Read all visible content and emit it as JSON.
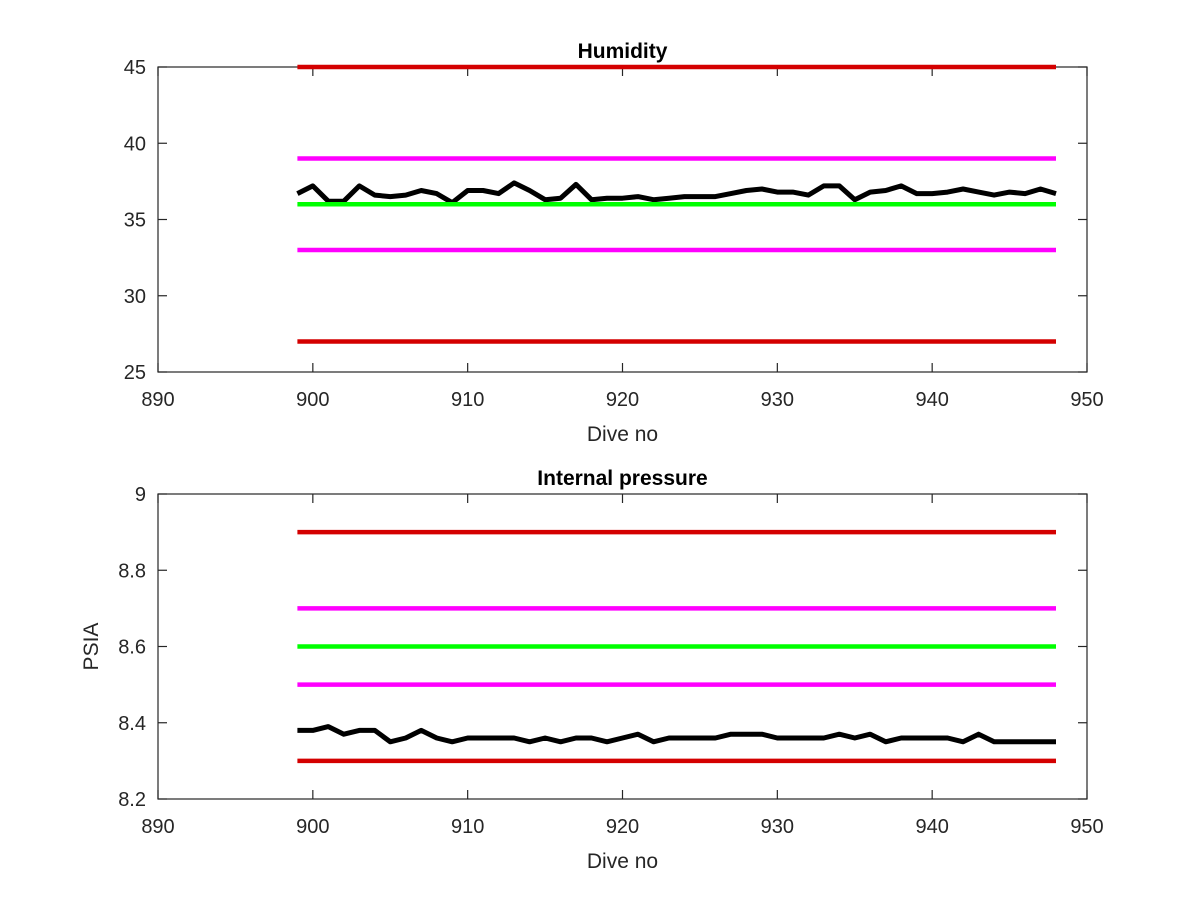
{
  "chart_data": [
    {
      "type": "line",
      "title": "Humidity",
      "xlabel": "Dive no",
      "ylabel": "",
      "xlim": [
        890,
        950
      ],
      "ylim": [
        25,
        45
      ],
      "xticks": [
        "890",
        "900",
        "910",
        "920",
        "930",
        "940",
        "950"
      ],
      "yticks": [
        "25",
        "30",
        "35",
        "40",
        "45"
      ],
      "grid": false,
      "legend": "none",
      "x": [
        899,
        900,
        901,
        902,
        903,
        904,
        905,
        906,
        907,
        908,
        909,
        910,
        911,
        912,
        913,
        914,
        915,
        916,
        917,
        918,
        919,
        920,
        921,
        922,
        923,
        924,
        925,
        926,
        927,
        928,
        929,
        930,
        931,
        932,
        933,
        934,
        935,
        936,
        937,
        938,
        939,
        940,
        941,
        942,
        943,
        944,
        945,
        946,
        947,
        948
      ],
      "series": [
        {
          "color": "#000000",
          "values": [
            36.7,
            37.2,
            36.2,
            36.2,
            37.2,
            36.6,
            36.5,
            36.6,
            36.9,
            36.7,
            36.1,
            36.9,
            36.9,
            36.7,
            37.4,
            36.9,
            36.3,
            36.4,
            37.3,
            36.3,
            36.4,
            36.4,
            36.5,
            36.3,
            36.4,
            36.5,
            36.5,
            36.5,
            36.7,
            36.9,
            37.0,
            36.8,
            36.8,
            36.6,
            37.2,
            37.2,
            36.3,
            36.8,
            36.9,
            37.2,
            36.7,
            36.7,
            36.8,
            37.0,
            36.8,
            36.6,
            36.8,
            36.7,
            37.0,
            36.7
          ]
        },
        {
          "color": "#d40000",
          "x": [
            899,
            948
          ],
          "values": [
            45,
            45
          ]
        },
        {
          "color": "#ff00ff",
          "x": [
            899,
            948
          ],
          "values": [
            39,
            39
          ]
        },
        {
          "color": "#00ff00",
          "x": [
            899,
            948
          ],
          "values": [
            36,
            36
          ]
        },
        {
          "color": "#ff00ff",
          "x": [
            899,
            948
          ],
          "values": [
            33,
            33
          ]
        },
        {
          "color": "#d40000",
          "x": [
            899,
            948
          ],
          "values": [
            27,
            27
          ]
        }
      ]
    },
    {
      "type": "line",
      "title": "Internal pressure",
      "xlabel": "Dive no",
      "ylabel": "PSIA",
      "xlim": [
        890,
        950
      ],
      "ylim": [
        8.2,
        9
      ],
      "xticks": [
        "890",
        "900",
        "910",
        "920",
        "930",
        "940",
        "950"
      ],
      "yticks": [
        "8.2",
        "8.4",
        "8.6",
        "8.8",
        "9"
      ],
      "grid": false,
      "legend": "none",
      "x": [
        899,
        900,
        901,
        902,
        903,
        904,
        905,
        906,
        907,
        908,
        909,
        910,
        911,
        912,
        913,
        914,
        915,
        916,
        917,
        918,
        919,
        920,
        921,
        922,
        923,
        924,
        925,
        926,
        927,
        928,
        929,
        930,
        931,
        932,
        933,
        934,
        935,
        936,
        937,
        938,
        939,
        940,
        941,
        942,
        943,
        944,
        945,
        946,
        947,
        948
      ],
      "series": [
        {
          "color": "#000000",
          "values": [
            8.38,
            8.38,
            8.39,
            8.37,
            8.38,
            8.38,
            8.35,
            8.36,
            8.38,
            8.36,
            8.35,
            8.36,
            8.36,
            8.36,
            8.36,
            8.35,
            8.36,
            8.35,
            8.36,
            8.36,
            8.35,
            8.36,
            8.37,
            8.35,
            8.36,
            8.36,
            8.36,
            8.36,
            8.37,
            8.37,
            8.37,
            8.36,
            8.36,
            8.36,
            8.36,
            8.37,
            8.36,
            8.37,
            8.35,
            8.36,
            8.36,
            8.36,
            8.36,
            8.35,
            8.37,
            8.35,
            8.35,
            8.35,
            8.35,
            8.35
          ]
        },
        {
          "color": "#d40000",
          "x": [
            899,
            948
          ],
          "values": [
            8.9,
            8.9
          ]
        },
        {
          "color": "#ff00ff",
          "x": [
            899,
            948
          ],
          "values": [
            8.7,
            8.7
          ]
        },
        {
          "color": "#00ff00",
          "x": [
            899,
            948
          ],
          "values": [
            8.6,
            8.6
          ]
        },
        {
          "color": "#ff00ff",
          "x": [
            899,
            948
          ],
          "values": [
            8.5,
            8.5
          ]
        },
        {
          "color": "#d40000",
          "x": [
            899,
            948
          ],
          "values": [
            8.3,
            8.3
          ]
        }
      ]
    }
  ]
}
